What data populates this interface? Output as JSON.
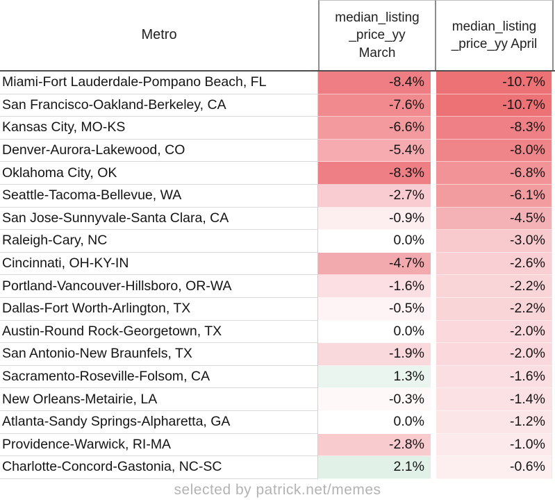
{
  "header": {
    "metro_label": "Metro",
    "march_label": "median_listing\n_price_yy\nMarch",
    "april_label": "median_listing\n_price_yy April"
  },
  "columns": [
    "Metro",
    "median_listing_price_yy March",
    "median_listing_price_yy April"
  ],
  "rows": [
    {
      "metro": "Miami-Fort Lauderdale-Pompano Beach, FL",
      "march": "-8.4%",
      "april": "-10.7%",
      "march_color": "#ee7e83",
      "april_color": "#ec7276"
    },
    {
      "metro": "San Francisco-Oakland-Berkeley, CA",
      "march": "-7.6%",
      "april": "-10.7%",
      "march_color": "#f08a8e",
      "april_color": "#ec7276"
    },
    {
      "metro": "Kansas City, MO-KS",
      "march": "-6.6%",
      "april": "-8.3%",
      "march_color": "#f29a9e",
      "april_color": "#ef8186"
    },
    {
      "metro": "Denver-Aurora-Lakewood, CO",
      "march": "-5.4%",
      "april": "-8.0%",
      "march_color": "#f5abaf",
      "april_color": "#f08589"
    },
    {
      "metro": "Oklahoma City, OK",
      "march": "-8.3%",
      "april": "-6.8%",
      "march_color": "#ee7f84",
      "april_color": "#f19397"
    },
    {
      "metro": "Seattle-Tacoma-Bellevue, WA",
      "march": "-2.7%",
      "april": "-6.1%",
      "march_color": "#f8ccd0",
      "april_color": "#f29ca0"
    },
    {
      "metro": "San Jose-Sunnyvale-Santa Clara, CA",
      "march": "-0.9%",
      "april": "-4.5%",
      "march_color": "#fdeef0",
      "april_color": "#f5b2b6"
    },
    {
      "metro": "Raleigh-Cary, NC",
      "march": "0.0%",
      "april": "-3.0%",
      "march_color": "#ffffff",
      "april_color": "#f8c9cd"
    },
    {
      "metro": "Cincinnati, OH-KY-IN",
      "march": "-4.7%",
      "april": "-2.6%",
      "march_color": "#f3aaae",
      "april_color": "#f9cfd3"
    },
    {
      "metro": "Portland-Vancouver-Hillsboro, OR-WA",
      "march": "-1.6%",
      "april": "-2.2%",
      "march_color": "#fbdfe2",
      "april_color": "#fad5d8"
    },
    {
      "metro": "Dallas-Fort Worth-Arlington, TX",
      "march": "-0.5%",
      "april": "-2.2%",
      "march_color": "#fef4f5",
      "april_color": "#fad5d8"
    },
    {
      "metro": "Austin-Round Rock-Georgetown, TX",
      "march": "0.0%",
      "april": "-2.0%",
      "march_color": "#ffffff",
      "april_color": "#fad8db"
    },
    {
      "metro": "San Antonio-New Braunfels, TX",
      "march": "-1.9%",
      "april": "-2.0%",
      "march_color": "#f9d9dc",
      "april_color": "#fad8db"
    },
    {
      "metro": "Sacramento-Roseville-Folsom, CA",
      "march": "1.3%",
      "april": "-1.6%",
      "march_color": "#e9f5ee",
      "april_color": "#fbdee1"
    },
    {
      "metro": "New Orleans-Metairie, LA",
      "march": "-0.3%",
      "april": "-1.4%",
      "march_color": "#fef8f8",
      "april_color": "#fbe1e4"
    },
    {
      "metro": "Atlanta-Sandy Springs-Alpharetta, GA",
      "march": "0.0%",
      "april": "-1.2%",
      "march_color": "#ffffff",
      "april_color": "#fce5e7"
    },
    {
      "metro": "Providence-Warwick, RI-MA",
      "march": "-2.8%",
      "april": "-1.0%",
      "march_color": "#f8cbcf",
      "april_color": "#fce9eb"
    },
    {
      "metro": "Charlotte-Concord-Gastonia, NC-SC",
      "march": "2.1%",
      "april": "-0.6%",
      "march_color": "#e2f1e8",
      "april_color": "#fdeff0"
    }
  ],
  "footer": {
    "credit": "selected by patrick.net/memes"
  },
  "colors": {
    "header_border_dark": "#4d4d4d",
    "header_border_gray": "#8c8c8c",
    "row_separator": "#dadada",
    "strong_negative_red": "#ec7276",
    "positive_green": "#e2f1e8",
    "neutral_white": "#ffffff",
    "footer_gray": "#b3b3b3"
  }
}
